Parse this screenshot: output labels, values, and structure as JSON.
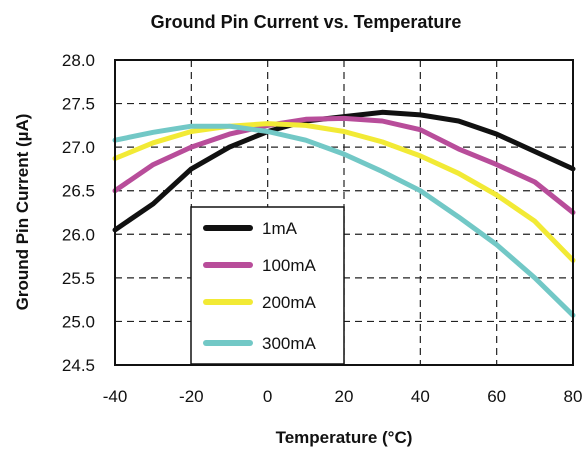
{
  "chart_data": {
    "type": "line",
    "title": "Ground Pin Current vs. Temperature",
    "xlabel": "Temperature (°C)",
    "ylabel": "Ground Pin Current (µA)",
    "xlim": [
      -40,
      80
    ],
    "ylim": [
      24.5,
      28.0
    ],
    "x_ticks": [
      "-40",
      "-20",
      "0",
      "20",
      "40",
      "60",
      "80"
    ],
    "y_ticks": [
      "28.0",
      "27.5",
      "27.0",
      "26.5",
      "26.0",
      "25.5",
      "25.0",
      "24.5"
    ],
    "grid": true,
    "legend_position": "bottom-left",
    "series": [
      {
        "name": "1mA",
        "color": "#111111",
        "x": [
          -40,
          -30,
          -20,
          -10,
          0,
          10,
          20,
          30,
          40,
          50,
          60,
          70,
          80
        ],
        "y": [
          26.05,
          26.35,
          26.75,
          27.0,
          27.18,
          27.3,
          27.35,
          27.4,
          27.37,
          27.3,
          27.15,
          26.95,
          26.75
        ]
      },
      {
        "name": "100mA",
        "color": "#b84d9a",
        "x": [
          -40,
          -30,
          -20,
          -10,
          0,
          10,
          20,
          30,
          40,
          50,
          60,
          70,
          80
        ],
        "y": [
          26.5,
          26.8,
          27.0,
          27.15,
          27.25,
          27.32,
          27.33,
          27.3,
          27.2,
          26.98,
          26.8,
          26.6,
          26.25
        ]
      },
      {
        "name": "200mA",
        "color": "#f2ea35",
        "x": [
          -40,
          -30,
          -20,
          -10,
          0,
          10,
          20,
          30,
          40,
          50,
          60,
          70,
          80
        ],
        "y": [
          26.87,
          27.05,
          27.18,
          27.24,
          27.27,
          27.25,
          27.18,
          27.06,
          26.9,
          26.7,
          26.45,
          26.15,
          25.7
        ]
      },
      {
        "name": "300mA",
        "color": "#72c8c6",
        "x": [
          -40,
          -30,
          -20,
          -10,
          0,
          10,
          20,
          30,
          40,
          50,
          60,
          70,
          80
        ],
        "y": [
          27.08,
          27.17,
          27.24,
          27.24,
          27.18,
          27.08,
          26.92,
          26.72,
          26.5,
          26.2,
          25.88,
          25.5,
          25.07
        ]
      }
    ]
  }
}
